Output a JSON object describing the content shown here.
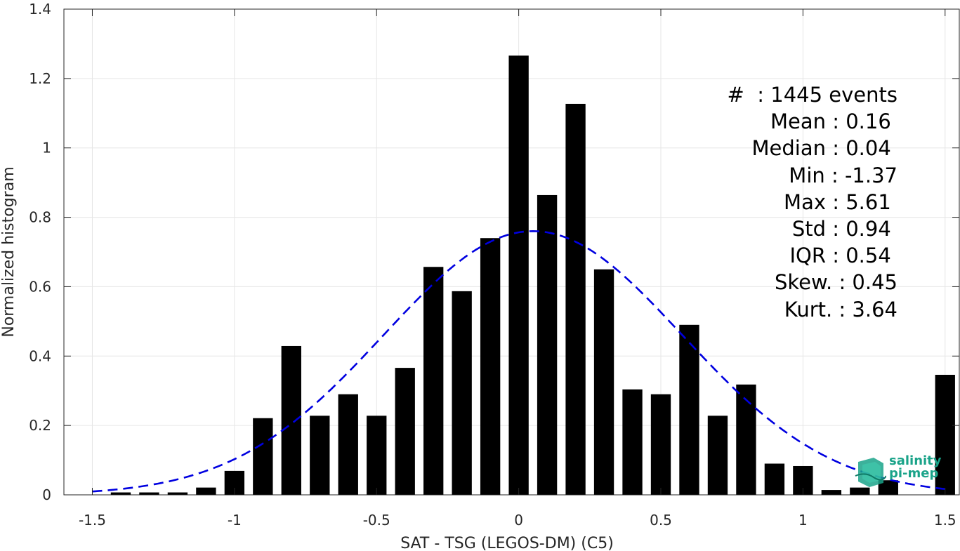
{
  "chart_data": {
    "type": "bar",
    "xlabel": "SAT - TSG (LEGOS-DM) (C5)",
    "ylabel": "Normalized histogram",
    "xlim": [
      -1.6,
      1.55
    ],
    "ylim": [
      0,
      1.4
    ],
    "xticks": [
      -1.5,
      -1,
      -0.5,
      0,
      0.5,
      1,
      1.5
    ],
    "xtick_labels": [
      "-1.5",
      "-1",
      "-0.5",
      "0",
      "0.5",
      "1",
      "1.5"
    ],
    "yticks": [
      0,
      0.2,
      0.4,
      0.6,
      0.8,
      1,
      1.2,
      1.4
    ],
    "ytick_labels": [
      "0",
      "0.2",
      "0.4",
      "0.6",
      "0.8",
      "1",
      "1.2",
      "1.4"
    ],
    "grid": true,
    "bar_width": 0.07,
    "bars": {
      "x": [
        -1.4,
        -1.3,
        -1.2,
        -1.1,
        -1.0,
        -0.9,
        -0.8,
        -0.7,
        -0.6,
        -0.5,
        -0.4,
        -0.3,
        -0.2,
        -0.1,
        0.0,
        0.1,
        0.2,
        0.3,
        0.4,
        0.5,
        0.6,
        0.7,
        0.8,
        0.9,
        1.0,
        1.1,
        1.2,
        1.3,
        1.5
      ],
      "values": [
        0.007,
        0.007,
        0.007,
        0.021,
        0.069,
        0.221,
        0.429,
        0.228,
        0.29,
        0.228,
        0.366,
        0.657,
        0.587,
        0.74,
        1.266,
        0.864,
        1.127,
        0.65,
        0.304,
        0.29,
        0.49,
        0.228,
        0.318,
        0.09,
        0.083,
        0.014,
        0.021,
        0.042,
        0.346
      ],
      "color": "#000000"
    },
    "fit_curve": {
      "style": "dashed",
      "color": "#0000e0",
      "mean": 0.05,
      "std": 0.525,
      "peak": 0.76,
      "x_range": [
        -1.5,
        1.5
      ]
    },
    "stats_box": {
      "placement": "top-right",
      "lines": [
        "#  : 1445 events",
        "Mean : 0.16 ",
        "Median : 0.04 ",
        "Min : -1.37",
        "Max : 5.61 ",
        "Std : 0.94 ",
        "IQR : 0.54 ",
        "Skew. : 0.45",
        "Kurt. : 3.64"
      ]
    }
  },
  "logo": {
    "line1": "salinity",
    "line2": "pi-mep",
    "color": "#1aa389"
  }
}
